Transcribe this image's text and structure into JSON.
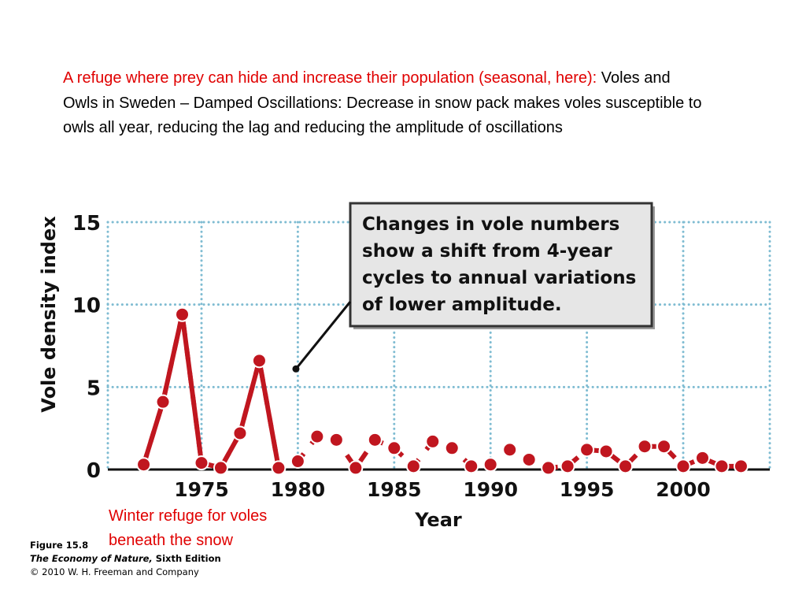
{
  "intro": {
    "red_text": "A refuge where prey can hide and increase their population (seasonal, here):",
    "black_text": " Voles and Owls in Sweden – Damped Oscillations: Decrease in snow pack makes voles susceptible to owls all year, reducing the lag and reducing the amplitude of oscillations"
  },
  "caption": {
    "line1": "Winter refuge for voles",
    "line2": "beneath the snow"
  },
  "figure_credit": {
    "figure": "Figure 15.8",
    "book": "The Economy of Nature,",
    "edition": " Sixth Edition",
    "copyright": "© 2010 W. H. Freeman and Company"
  },
  "colors": {
    "series": "#c0161f",
    "grid": "#7fbcd2",
    "callout_bg": "#e6e6e6",
    "axis": "#111111"
  },
  "chart_data": {
    "type": "line",
    "xlabel": "Year",
    "ylabel": "Vole density index",
    "xlim": [
      1970,
      2005
    ],
    "ylim": [
      0,
      15
    ],
    "x_ticks": [
      1975,
      1980,
      1985,
      1990,
      1995,
      2000
    ],
    "y_ticks": [
      0,
      5,
      10,
      15
    ],
    "grid": true,
    "callout": {
      "lines": [
        "Changes in vole numbers",
        "show a shift from 4-year",
        "cycles to annual variations",
        "of lower amplitude."
      ],
      "points_to": {
        "x": 1979.9,
        "y": 6.1
      }
    },
    "series": [
      {
        "x": [
          1972,
          1973,
          1974,
          1975,
          1976,
          1977,
          1978,
          1979,
          1980,
          1981,
          1982,
          1983,
          1984,
          1985,
          1986,
          1987,
          1988,
          1989,
          1990,
          1991,
          1992,
          1993,
          1994,
          1995,
          1996,
          1997,
          1998,
          1999,
          2000,
          2001,
          2002,
          2003
        ],
        "values": [
          0.3,
          4.1,
          9.4,
          0.4,
          0.1,
          2.2,
          6.6,
          0.1,
          0.5,
          2.0,
          1.8,
          0.1,
          1.8,
          1.3,
          0.2,
          1.7,
          1.3,
          0.2,
          0.3,
          1.2,
          0.6,
          0.1,
          0.2,
          1.2,
          1.1,
          0.2,
          1.4,
          1.4,
          0.2,
          0.7,
          0.2,
          0.2
        ]
      }
    ]
  }
}
